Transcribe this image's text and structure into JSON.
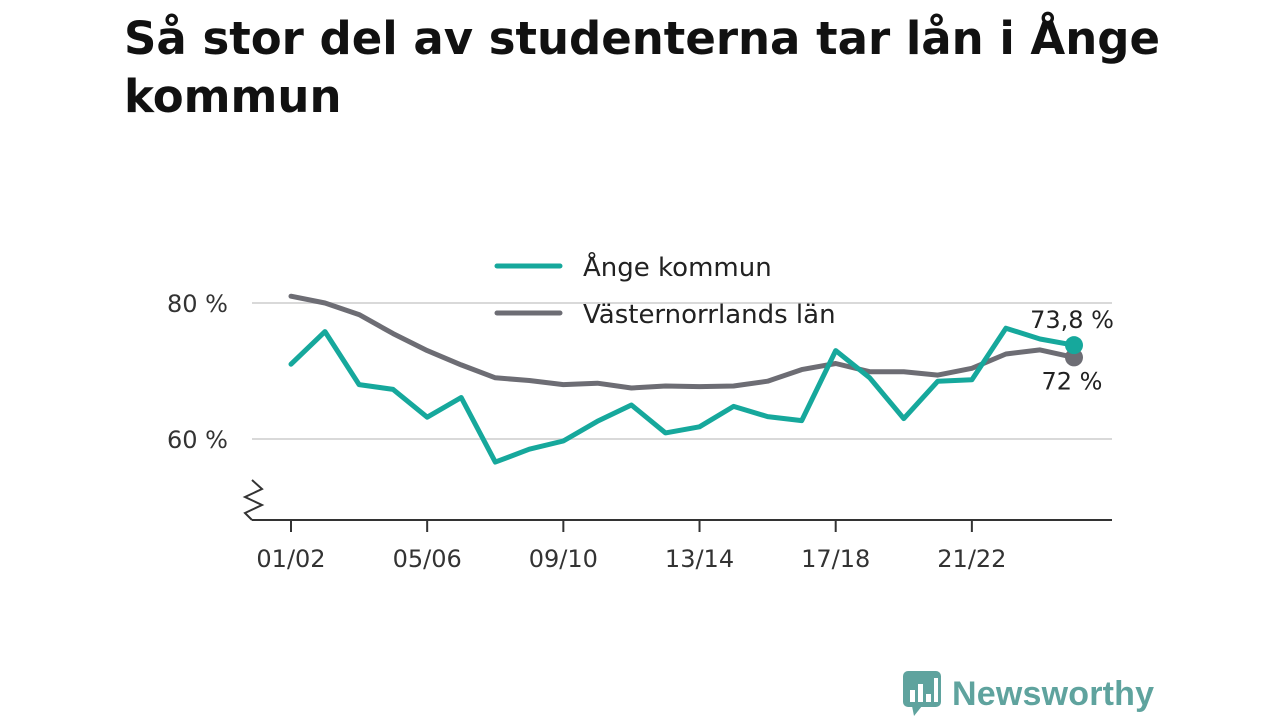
{
  "title": "Så stor del av studenterna tar lån i Ånge kommun",
  "brand": {
    "name": "Newsworthy",
    "color": "#5fa39e",
    "icon": "bar-chart-speech-bubble-icon"
  },
  "colors": {
    "grid": "#d9d9d9",
    "axis": "#333333"
  },
  "chart_data": {
    "type": "line",
    "x": [
      "01/02",
      "02/03",
      "03/04",
      "04/05",
      "05/06",
      "06/07",
      "07/08",
      "08/09",
      "09/10",
      "10/11",
      "11/12",
      "12/13",
      "13/14",
      "14/15",
      "15/16",
      "16/17",
      "17/18",
      "18/19",
      "19/20",
      "20/21",
      "21/22",
      "22/23",
      "23/24",
      "24/25"
    ],
    "x_tick_labels": [
      "01/02",
      "05/06",
      "09/10",
      "13/14",
      "17/18",
      "21/22"
    ],
    "y_tick_values": [
      60,
      80
    ],
    "y_tick_labels": [
      "60 %",
      "80 %"
    ],
    "ylim": [
      48,
      83
    ],
    "y_axis_break": true,
    "grid": true,
    "legend": "top-center",
    "series": [
      {
        "name": "Ånge kommun",
        "color": "#16a89c",
        "end_label": "73,8 %",
        "values": [
          71.0,
          75.8,
          68.0,
          67.3,
          63.2,
          66.1,
          56.6,
          58.5,
          59.7,
          62.6,
          65.0,
          60.9,
          61.8,
          64.8,
          63.3,
          62.7,
          73.0,
          69.0,
          63.0,
          68.5,
          68.7,
          76.3,
          74.7,
          73.8
        ]
      },
      {
        "name": "Västernorrlands län",
        "color": "#6d6d74",
        "end_label": "72 %",
        "values": [
          81.0,
          80.0,
          78.3,
          75.5,
          73.0,
          70.9,
          69.0,
          68.6,
          68.0,
          68.2,
          67.5,
          67.8,
          67.7,
          67.8,
          68.5,
          70.2,
          71.1,
          69.9,
          69.9,
          69.4,
          70.4,
          72.5,
          73.1,
          72.0
        ]
      }
    ]
  }
}
